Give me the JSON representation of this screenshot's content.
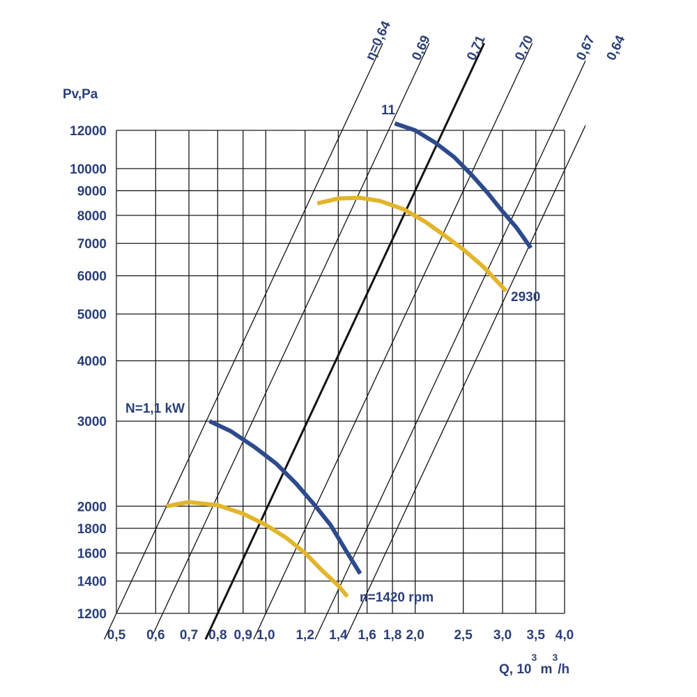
{
  "chart_data": {
    "type": "line",
    "ylabel": "Pv,Pa",
    "xlabel_parts": {
      "prefix": "Q, 10",
      "exp1": "3",
      "mid": " m",
      "exp2": "3",
      "suffix": "/h"
    },
    "x_scale": "log",
    "y_scale": "log",
    "xlim": [
      0.5,
      4.0
    ],
    "ylim": [
      1200,
      12000
    ],
    "grid": true,
    "x_ticks": [
      0.5,
      0.6,
      0.7,
      0.8,
      0.9,
      1.0,
      1.2,
      1.4,
      1.6,
      1.8,
      2.0,
      2.5,
      3.0,
      3.5,
      4.0
    ],
    "x_tick_labels": [
      "0,5",
      "0,6",
      "0,7",
      "0,8",
      "0,9",
      "1,0",
      "1,2",
      "1,4",
      "1,6",
      "1,8",
      "2,0",
      "2,5",
      "3,0",
      "3,5",
      "4,0"
    ],
    "y_ticks": [
      1200,
      1400,
      1600,
      1800,
      2000,
      3000,
      4000,
      5000,
      6000,
      7000,
      8000,
      9000,
      10000,
      12000
    ],
    "y_tick_labels": [
      "1200",
      "1400",
      "1600",
      "1800",
      "2000",
      "3000",
      "4000",
      "5000",
      "6000",
      "7000",
      "8000",
      "9000",
      "10000",
      "12000"
    ],
    "efficiency_lines": [
      {
        "label": "η=0,64",
        "Q_at_Pmin": 0.5,
        "bold": false
      },
      {
        "label": "0,69",
        "Q_at_Pmin": 0.62,
        "bold": false
      },
      {
        "label": "0,71",
        "Q_at_Pmin": 0.8,
        "bold": true
      },
      {
        "label": "0,70",
        "Q_at_Pmin": 1.0,
        "bold": false
      },
      {
        "label": "0,67",
        "Q_at_Pmin": 1.33,
        "bold": false
      },
      {
        "label": "0,64",
        "Q_at_Pmin": 1.53,
        "bold": false
      }
    ],
    "series": [
      {
        "color": "#e2b52b",
        "x": [
          0.63,
          0.7,
          0.8,
          0.9,
          1.0,
          1.1,
          1.2,
          1.3,
          1.4,
          1.46
        ],
        "y": [
          2000,
          2040,
          2010,
          1930,
          1830,
          1720,
          1600,
          1470,
          1370,
          1300
        ]
      },
      {
        "color": "#2d4a8c",
        "x": [
          0.77,
          0.85,
          0.95,
          1.05,
          1.15,
          1.25,
          1.35,
          1.45,
          1.55
        ],
        "y": [
          3000,
          2860,
          2650,
          2450,
          2230,
          2020,
          1830,
          1620,
          1450
        ]
      },
      {
        "color": "#e2b52b",
        "x": [
          1.27,
          1.4,
          1.55,
          1.7,
          1.9,
          2.1,
          2.3,
          2.5,
          2.75,
          3.05
        ],
        "y": [
          8470,
          8670,
          8700,
          8570,
          8230,
          7750,
          7250,
          6800,
          6250,
          5580
        ]
      },
      {
        "color": "#2d4a8c",
        "x": [
          1.82,
          2.0,
          2.2,
          2.4,
          2.6,
          2.8,
          3.0,
          3.2,
          3.42
        ],
        "y": [
          12400,
          12000,
          11300,
          10550,
          9700,
          8900,
          8150,
          7550,
          6850
        ]
      }
    ],
    "annotations": [
      {
        "text": "N=1,1 kW",
        "color": "#2a3f78"
      },
      {
        "text": "n=1420 rpm",
        "color": "#2a3f78"
      },
      {
        "text": "11",
        "color": "#2a3f78"
      },
      {
        "text": "2930",
        "color": "#2a3f78"
      }
    ]
  }
}
